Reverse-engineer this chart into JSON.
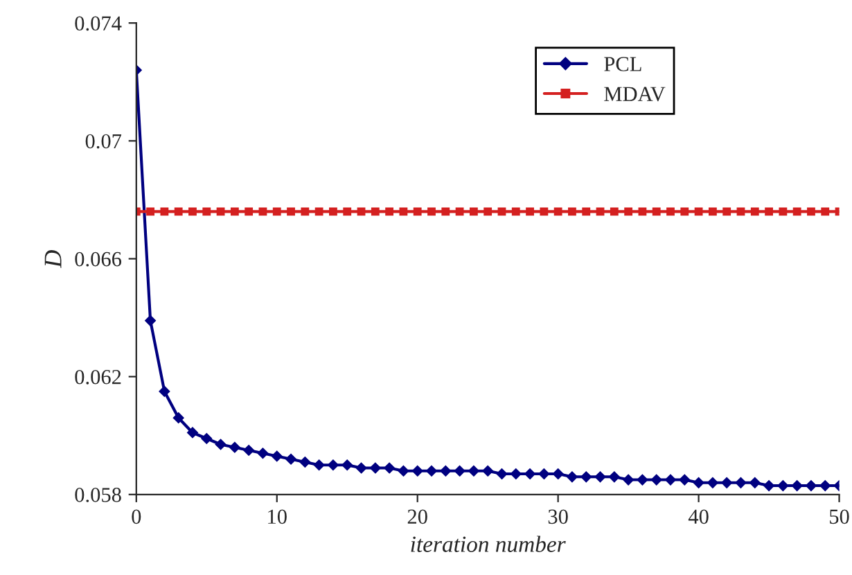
{
  "chart_data": {
    "type": "line",
    "xlabel": "iteration number",
    "ylabel": "D",
    "x": [
      0,
      1,
      2,
      3,
      4,
      5,
      6,
      7,
      8,
      9,
      10,
      11,
      12,
      13,
      14,
      15,
      16,
      17,
      18,
      19,
      20,
      21,
      22,
      23,
      24,
      25,
      26,
      27,
      28,
      29,
      30,
      31,
      32,
      33,
      34,
      35,
      36,
      37,
      38,
      39,
      40,
      41,
      42,
      43,
      44,
      45,
      46,
      47,
      48,
      49,
      50
    ],
    "series": [
      {
        "name": "PCL",
        "color": "#000080",
        "marker": "diamond",
        "values": [
          0.0724,
          0.0639,
          0.0615,
          0.0606,
          0.0601,
          0.0599,
          0.0597,
          0.0596,
          0.0595,
          0.0594,
          0.0593,
          0.0592,
          0.0591,
          0.059,
          0.059,
          0.059,
          0.0589,
          0.0589,
          0.0589,
          0.0588,
          0.0588,
          0.0588,
          0.0588,
          0.0588,
          0.0588,
          0.0588,
          0.0587,
          0.0587,
          0.0587,
          0.0587,
          0.0587,
          0.0586,
          0.0586,
          0.0586,
          0.0586,
          0.0585,
          0.0585,
          0.0585,
          0.0585,
          0.0585,
          0.0584,
          0.0584,
          0.0584,
          0.0584,
          0.0584,
          0.0583,
          0.0583,
          0.0583,
          0.0583,
          0.0583,
          0.0583
        ]
      },
      {
        "name": "MDAV",
        "color": "#d42020",
        "marker": "square",
        "values": [
          0.0676,
          0.0676,
          0.0676,
          0.0676,
          0.0676,
          0.0676,
          0.0676,
          0.0676,
          0.0676,
          0.0676,
          0.0676,
          0.0676,
          0.0676,
          0.0676,
          0.0676,
          0.0676,
          0.0676,
          0.0676,
          0.0676,
          0.0676,
          0.0676,
          0.0676,
          0.0676,
          0.0676,
          0.0676,
          0.0676,
          0.0676,
          0.0676,
          0.0676,
          0.0676,
          0.0676,
          0.0676,
          0.0676,
          0.0676,
          0.0676,
          0.0676,
          0.0676,
          0.0676,
          0.0676,
          0.0676,
          0.0676,
          0.0676,
          0.0676,
          0.0676,
          0.0676,
          0.0676,
          0.0676,
          0.0676,
          0.0676,
          0.0676,
          0.0676
        ]
      }
    ],
    "xlim": [
      0,
      50
    ],
    "xticks": [
      0,
      10,
      20,
      30,
      40,
      50
    ],
    "ylim": [
      0.058,
      0.074
    ],
    "yticks": [
      "0.058",
      0.062,
      0.066,
      {
        "value": 0.07,
        "label": "0.07"
      },
      0.074
    ],
    "line_style": "solid",
    "grid": false,
    "legend": "top right"
  }
}
